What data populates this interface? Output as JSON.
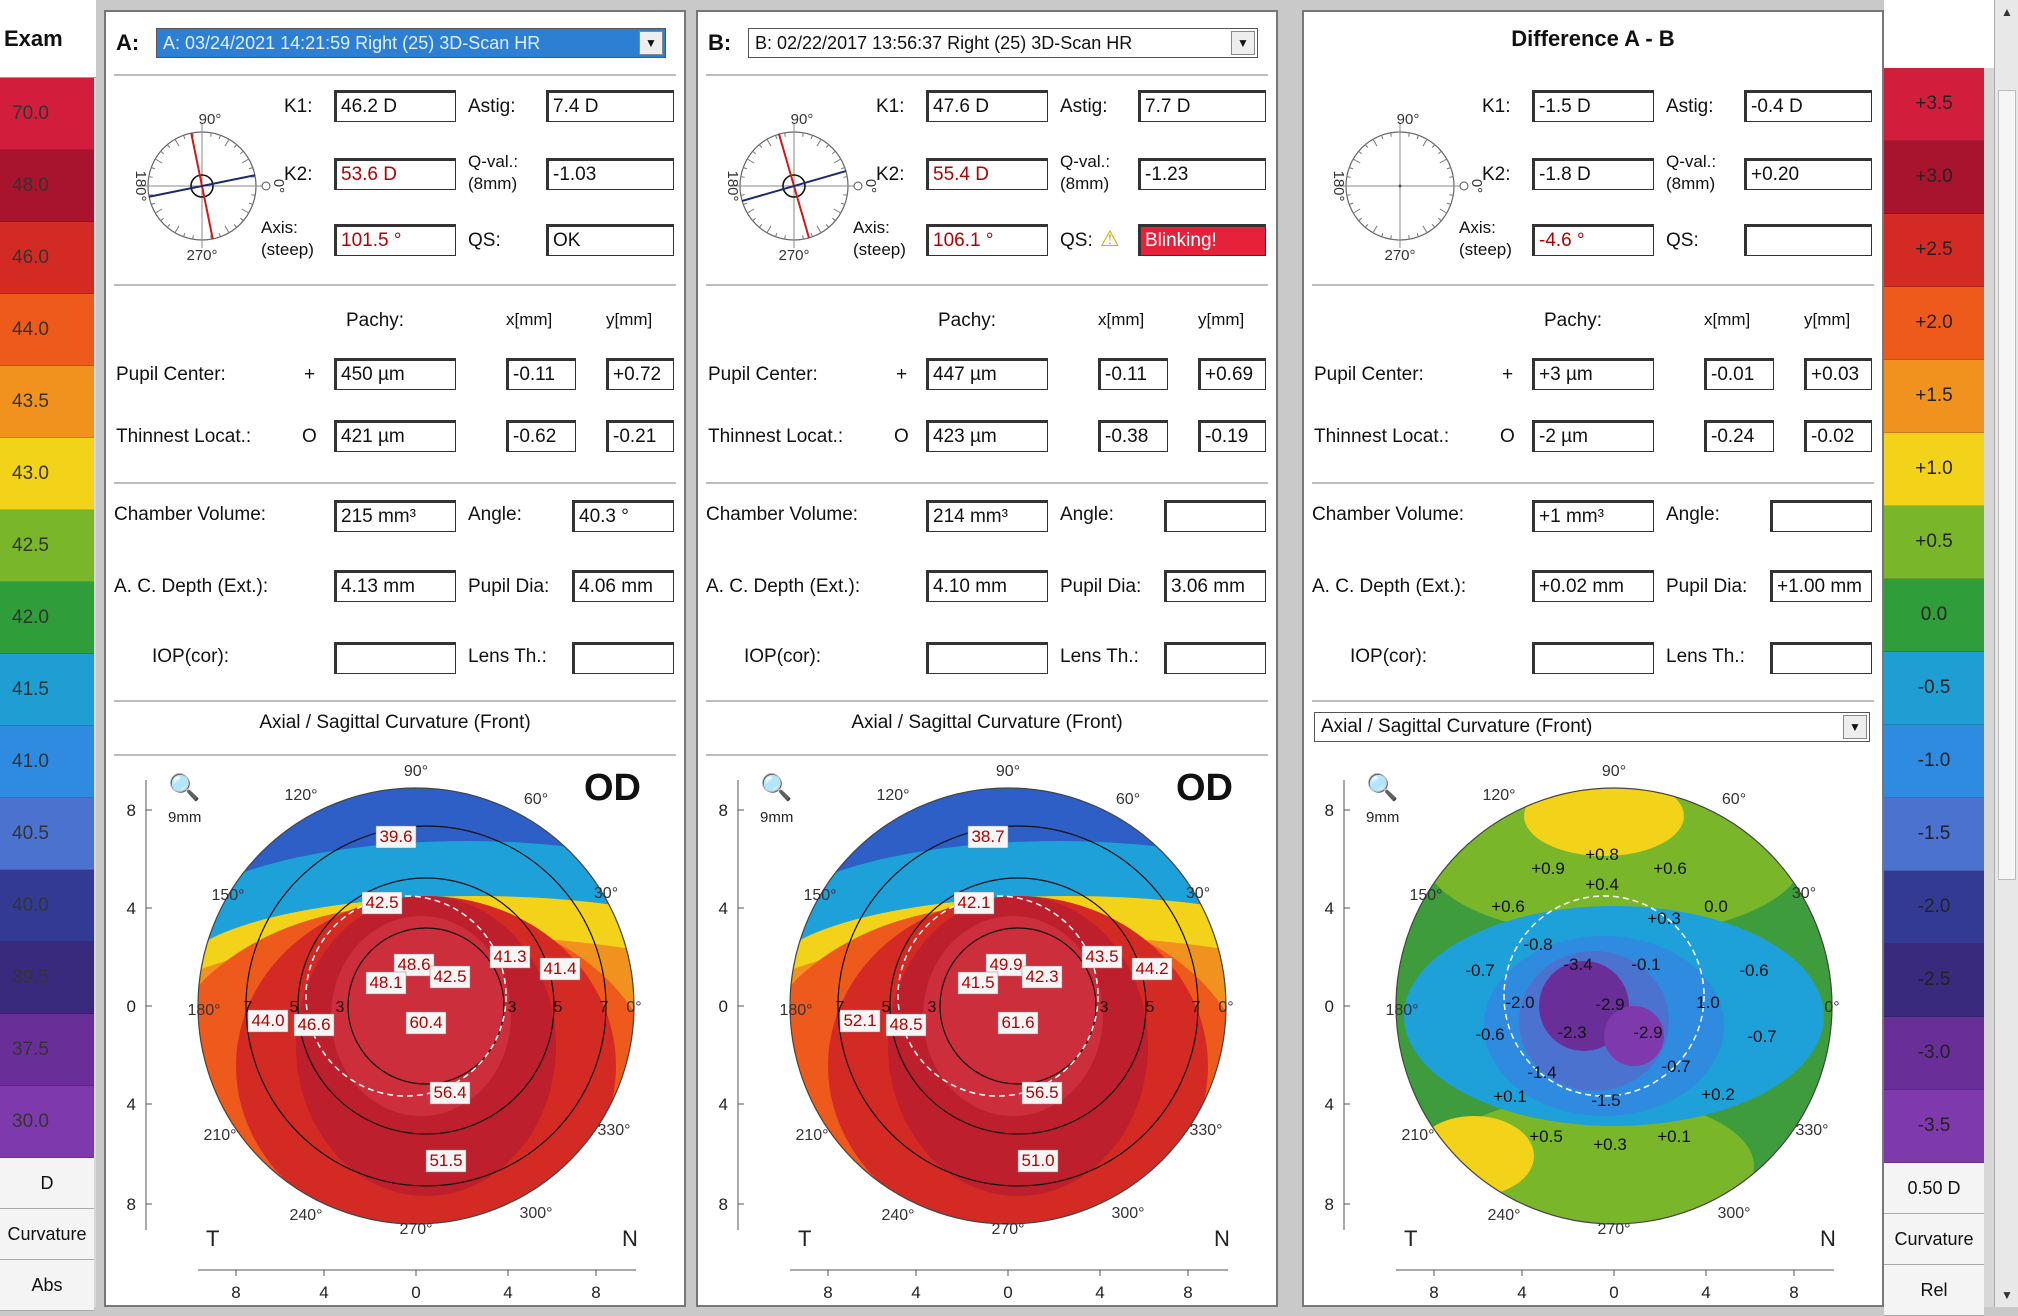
{
  "left_scale": {
    "header": "Exam",
    "items": [
      {
        "value": "70.0",
        "color": "#d21e3c"
      },
      {
        "value": "48.0",
        "color": "#a8132e"
      },
      {
        "value": "46.0",
        "color": "#d42a24"
      },
      {
        "value": "44.0",
        "color": "#ee5a1c"
      },
      {
        "value": "43.5",
        "color": "#f2921e"
      },
      {
        "value": "43.0",
        "color": "#f3d21a"
      },
      {
        "value": "42.5",
        "color": "#79b62a"
      },
      {
        "value": "42.0",
        "color": "#2f9d3a"
      },
      {
        "value": "41.5",
        "color": "#1e9ed2"
      },
      {
        "value": "41.0",
        "color": "#2f8be0"
      },
      {
        "value": "40.5",
        "color": "#4c72cf"
      },
      {
        "value": "40.0",
        "color": "#323a93"
      },
      {
        "value": "39.5",
        "color": "#3a2a7d"
      },
      {
        "value": "37.5",
        "color": "#6a2e99"
      },
      {
        "value": "30.0",
        "color": "#7e3aac"
      }
    ],
    "footer": [
      "D",
      "Curvature",
      "Abs"
    ]
  },
  "right_scale": {
    "items": [
      {
        "value": "+3.5",
        "color": "#d21e3c"
      },
      {
        "value": "+3.0",
        "color": "#a8132e"
      },
      {
        "value": "+2.5",
        "color": "#d42a24"
      },
      {
        "value": "+2.0",
        "color": "#ee5a1c"
      },
      {
        "value": "+1.5",
        "color": "#f2921e"
      },
      {
        "value": "+1.0",
        "color": "#f3d21a"
      },
      {
        "value": "+0.5",
        "color": "#79b62a"
      },
      {
        "value": "0.0",
        "color": "#2f9d3a"
      },
      {
        "value": "-0.5",
        "color": "#1e9ed2"
      },
      {
        "value": "-1.0",
        "color": "#2f8be0"
      },
      {
        "value": "-1.5",
        "color": "#4c72cf"
      },
      {
        "value": "-2.0",
        "color": "#323a93"
      },
      {
        "value": "-2.5",
        "color": "#3a2a7d"
      },
      {
        "value": "-3.0",
        "color": "#6a2e99"
      },
      {
        "value": "-3.5",
        "color": "#7e3aac"
      }
    ],
    "footer": [
      "0.50 D",
      "Curvature",
      "Rel"
    ]
  },
  "common": {
    "deg90": "90°",
    "deg180": "180°",
    "deg270": "270°",
    "deg0": "0°",
    "k1": "K1:",
    "k2": "K2:",
    "axis": "Axis:",
    "steep": "(steep)",
    "astig": "Astig:",
    "qval": "Q-val.:",
    "qval_sub": "(8mm)",
    "qs": "QS:",
    "pachy": "Pachy:",
    "xmm": "x[mm]",
    "ymm": "y[mm]",
    "pupil_center": "Pupil Center:",
    "thinnest": "Thinnest Locat.:",
    "plus": "+",
    "circle": "O",
    "chamber": "Chamber Volume:",
    "angle": "Angle:",
    "acdepth": "A. C. Depth (Ext.):",
    "pupildia": "Pupil Dia:",
    "iop": "IOP(cor):",
    "lens": "Lens Th.:",
    "zoom": "9mm",
    "od": "OD",
    "t": "T",
    "n": "N",
    "map_title": "Axial / Sagittal Curvature (Front)",
    "ticks": [
      "8",
      "4",
      "0",
      "4",
      "8"
    ],
    "degs": [
      "90°",
      "120°",
      "60°",
      "150°",
      "30°",
      "180°",
      "0°",
      "210°",
      "330°",
      "240°",
      "300°",
      "270°"
    ]
  },
  "panel_a": {
    "label": "A:",
    "exam": "A: 03/24/2021 14:21:59 Right (25) 3D-Scan HR",
    "k1": "46.2 D",
    "k2": "53.6 D",
    "axis": "101.5 °",
    "astig": "7.4 D",
    "qval": "-1.03",
    "qs": "OK",
    "pupil_pachy": "450 µm",
    "pupil_x": "-0.11",
    "pupil_y": "+0.72",
    "thin_pachy": "421 µm",
    "thin_x": "-0.62",
    "thin_y": "-0.21",
    "chamber": "215 mm³",
    "angle": "40.3 °",
    "acdepth": "4.13 mm",
    "pupildia": "4.06 mm",
    "iop": "",
    "lens": "",
    "map_values": [
      "39.6",
      "42.5",
      "48.6",
      "48.1",
      "42.5",
      "41.3",
      "41.4",
      "44.0",
      "46.6",
      "60.4",
      "56.4",
      "51.5"
    ],
    "ring_nums": [
      "7",
      "5",
      "3",
      "3",
      "5",
      "7"
    ]
  },
  "panel_b": {
    "label": "B:",
    "exam": "B: 02/22/2017 13:56:37 Right (25) 3D-Scan HR",
    "k1": "47.6 D",
    "k2": "55.4 D",
    "axis": "106.1 °",
    "astig": "7.7 D",
    "qval": "-1.23",
    "qs": "Blinking!",
    "pupil_pachy": "447 µm",
    "pupil_x": "-0.11",
    "pupil_y": "+0.69",
    "thin_pachy": "423 µm",
    "thin_x": "-0.38",
    "thin_y": "-0.19",
    "chamber": "214 mm³",
    "angle": "",
    "acdepth": "4.10 mm",
    "pupildia": "3.06 mm",
    "iop": "",
    "lens": "",
    "map_values": [
      "38.7",
      "42.1",
      "49.9",
      "41.5",
      "42.3",
      "43.5",
      "44.2",
      "52.1",
      "48.5",
      "61.6",
      "56.5",
      "51.0"
    ],
    "ring_nums": [
      "7",
      "5",
      "3",
      "3",
      "5",
      "7"
    ]
  },
  "panel_diff": {
    "title": "Difference A - B",
    "k1": "-1.5 D",
    "k2": "-1.8 D",
    "axis": "-4.6 °",
    "astig": "-0.4 D",
    "qval": "+0.20",
    "qs": "",
    "pupil_pachy": "+3 µm",
    "pupil_x": "-0.01",
    "pupil_y": "+0.03",
    "thin_pachy": "-2 µm",
    "thin_x": "-0.24",
    "thin_y": "-0.02",
    "chamber": "+1 mm³",
    "angle": "",
    "acdepth": "+0.02 mm",
    "pupildia": "+1.00 mm",
    "iop": "",
    "lens": "",
    "map_values": [
      "+0.8",
      "+0.9",
      "+0.6",
      "+0.4",
      "+0.6",
      "0.0",
      "+0.3",
      "-0.8",
      "-0.7",
      "-3.4",
      "-0.1",
      "-0.6",
      "-2.0",
      "-2.9",
      "1.0",
      "-0.6",
      "-2.3",
      "-2.9",
      "-0.7",
      "-1.4",
      "-0.7",
      "+0.1",
      "-1.5",
      "+0.2",
      "+0.5",
      "+0.1",
      "+0.3"
    ]
  }
}
